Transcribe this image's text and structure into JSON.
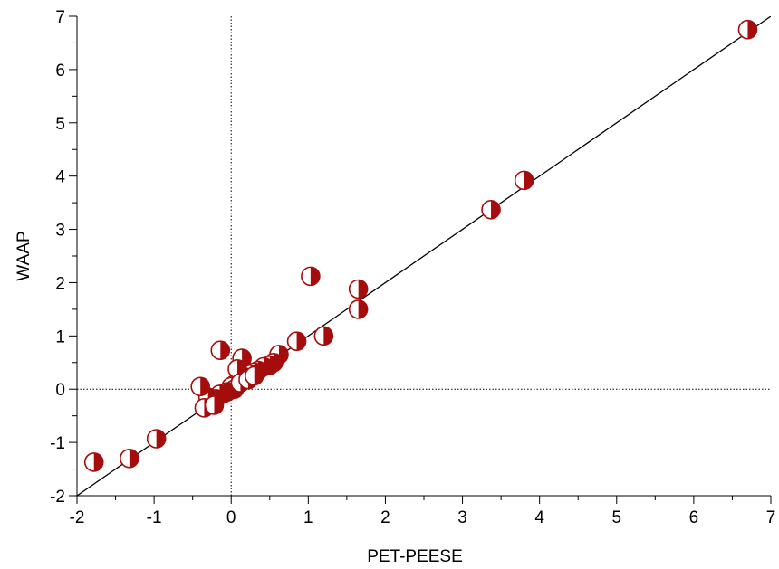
{
  "chart_data": {
    "type": "scatter",
    "title": "",
    "xlabel": "PET-PEESE",
    "ylabel": "WAAP",
    "xlim": [
      -2,
      7
    ],
    "ylim": [
      -2,
      7
    ],
    "xticks": [
      "-2",
      "-1",
      "0",
      "1",
      "2",
      "3",
      "4",
      "5",
      "6",
      "7"
    ],
    "yticks": [
      "-2",
      "-1",
      "0",
      "1",
      "2",
      "3",
      "4",
      "5",
      "6",
      "7"
    ],
    "grid": false,
    "reference_lines": {
      "x_zero": true,
      "y_zero": true,
      "identity": true
    },
    "marker_color": "#a50d0d",
    "marker_style": "half-filled circle",
    "points": [
      [
        6.7,
        6.75
      ],
      [
        3.8,
        3.92
      ],
      [
        3.37,
        3.37
      ],
      [
        1.03,
        2.12
      ],
      [
        1.65,
        1.88
      ],
      [
        1.65,
        1.5
      ],
      [
        1.2,
        1.0
      ],
      [
        0.85,
        0.9
      ],
      [
        -0.14,
        0.73
      ],
      [
        0.14,
        0.58
      ],
      [
        0.62,
        0.65
      ],
      [
        0.55,
        0.5
      ],
      [
        0.5,
        0.45
      ],
      [
        0.42,
        0.42
      ],
      [
        0.35,
        0.35
      ],
      [
        0.3,
        0.32
      ],
      [
        0.25,
        0.28
      ],
      [
        0.2,
        0.22
      ],
      [
        0.15,
        0.2
      ],
      [
        0.1,
        0.15
      ],
      [
        0.05,
        0.1
      ],
      [
        0.0,
        0.05
      ],
      [
        0.08,
        0.38
      ],
      [
        0.04,
        0.0
      ],
      [
        -0.05,
        -0.05
      ],
      [
        -0.1,
        -0.08
      ],
      [
        -0.15,
        -0.1
      ],
      [
        -0.2,
        -0.18
      ],
      [
        -0.25,
        -0.2
      ],
      [
        -0.3,
        -0.15
      ],
      [
        -0.4,
        0.05
      ],
      [
        -0.35,
        -0.35
      ],
      [
        -0.22,
        -0.3
      ],
      [
        0.12,
        0.12
      ],
      [
        0.22,
        0.18
      ],
      [
        0.3,
        0.25
      ],
      [
        -0.97,
        -0.93
      ],
      [
        -1.32,
        -1.3
      ],
      [
        -1.78,
        -1.37
      ]
    ]
  }
}
